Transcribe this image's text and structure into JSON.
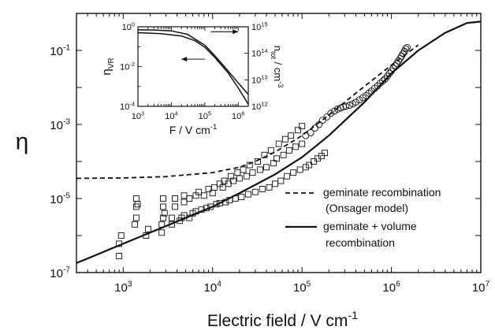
{
  "chart_data": [
    {
      "type": "scatter",
      "xlabel_base": "Electric field  /  V cm",
      "xlabel_exp": "-1",
      "ylabel": "η",
      "xscale": "log",
      "yscale": "log",
      "xlim": [
        300,
        10000000
      ],
      "ylim": [
        1e-07,
        1
      ],
      "xticks": [
        {
          "v": 1000,
          "base": "10",
          "exp": "3"
        },
        {
          "v": 10000,
          "base": "10",
          "exp": "4"
        },
        {
          "v": 100000,
          "base": "10",
          "exp": "5"
        },
        {
          "v": 1000000,
          "base": "10",
          "exp": "6"
        },
        {
          "v": 10000000,
          "base": "10",
          "exp": "7"
        }
      ],
      "yticks": [
        {
          "v": 1e-07,
          "base": "10",
          "exp": "-7"
        },
        {
          "v": 1e-05,
          "base": "10",
          "exp": "-5"
        },
        {
          "v": 0.001,
          "base": "10",
          "exp": "-3"
        },
        {
          "v": 0.1,
          "base": "10",
          "exp": "-1"
        }
      ],
      "legend": {
        "placement": "lower-right",
        "entries": [
          {
            "style": "dashed",
            "lines": [
              "geminate recombination",
              "(Onsager model)"
            ]
          },
          {
            "style": "solid",
            "lines": [
              "geminate + volume",
              "recombination"
            ]
          }
        ]
      },
      "series": [
        {
          "style": "dashed",
          "points": [
            [
              300,
              3.5e-05
            ],
            [
              1000,
              3.6e-05
            ],
            [
              3000,
              3.9e-05
            ],
            [
              10000,
              5e-05
            ],
            [
              20000,
              7e-05
            ],
            [
              30000,
              0.0001
            ],
            [
              50000,
              0.00018
            ],
            [
              100000,
              0.0005
            ],
            [
              200000,
              0.0018
            ],
            [
              400000,
              0.007
            ],
            [
              1000000,
              0.04
            ],
            [
              2000000,
              0.14
            ]
          ]
        },
        {
          "style": "solid",
          "points": [
            [
              300,
              1.8e-07
            ],
            [
              1000,
              6e-07
            ],
            [
              3000,
              1.8e-06
            ],
            [
              10000,
              6e-06
            ],
            [
              20000,
              1.4e-05
            ],
            [
              50000,
              4.5e-05
            ],
            [
              100000,
              0.00013
            ],
            [
              200000,
              0.0005
            ],
            [
              500000,
              0.004
            ],
            [
              1000000,
              0.024
            ],
            [
              2000000,
              0.1
            ],
            [
              4000000,
              0.3
            ],
            [
              7000000,
              0.55
            ],
            [
              10000000,
              0.6
            ]
          ]
        },
        {
          "marker": "square",
          "points": [
            [
              900,
              2.8e-07
            ],
            [
              900,
              6e-07
            ],
            [
              950,
              1e-06
            ],
            [
              1350,
              2e-06
            ],
            [
              1400,
              3e-06
            ],
            [
              1400,
              6e-06
            ],
            [
              1400,
              1e-05
            ],
            [
              1450,
              7e-06
            ],
            [
              1800,
              1e-06
            ],
            [
              1900,
              1.5e-06
            ],
            [
              2700,
              1.2e-06
            ],
            [
              2700,
              2e-06
            ],
            [
              2800,
              3e-06
            ],
            [
              2800,
              6e-06
            ],
            [
              2800,
              1e-05
            ],
            [
              2900,
              4e-06
            ],
            [
              3500,
              2e-06
            ],
            [
              3500,
              3e-06
            ],
            [
              3800,
              6e-06
            ],
            [
              3800,
              1e-05
            ],
            [
              4300,
              2.5e-06
            ],
            [
              4500,
              3e-06
            ],
            [
              4800,
              3.5e-06
            ],
            [
              4800,
              8e-06
            ],
            [
              4800,
              1.2e-05
            ],
            [
              5500,
              3e-06
            ],
            [
              5500,
              1e-05
            ],
            [
              6000,
              4e-06
            ],
            [
              6500,
              1.2e-05
            ],
            [
              6500,
              4.5e-06
            ],
            [
              7000,
              1.5e-05
            ],
            [
              7500,
              5e-06
            ],
            [
              8000,
              1.2e-05
            ],
            [
              8500,
              5.5e-06
            ],
            [
              9000,
              1.8e-05
            ],
            [
              9500,
              6e-06
            ],
            [
              10000,
              1.4e-05
            ],
            [
              10500,
              2e-05
            ],
            [
              11000,
              7e-06
            ],
            [
              12000,
              2.5e-05
            ],
            [
              12000,
              7.5e-06
            ],
            [
              13000,
              2e-05
            ],
            [
              13500,
              3e-05
            ],
            [
              14000,
              8e-06
            ],
            [
              15000,
              2.5e-05
            ],
            [
              15500,
              9e-06
            ],
            [
              16000,
              4e-05
            ],
            [
              17000,
              3e-05
            ],
            [
              18000,
              1e-05
            ],
            [
              19000,
              5e-05
            ],
            [
              20000,
              3.5e-05
            ],
            [
              21000,
              1.1e-05
            ],
            [
              22000,
              6e-05
            ],
            [
              24000,
              4e-05
            ],
            [
              25000,
              1.3e-05
            ],
            [
              26000,
              8e-05
            ],
            [
              28000,
              5e-05
            ],
            [
              30000,
              1.5e-05
            ],
            [
              32000,
              0.0001
            ],
            [
              34000,
              6e-05
            ],
            [
              36000,
              1.8e-05
            ],
            [
              38000,
              0.00015
            ],
            [
              40000,
              7e-05
            ],
            [
              43000,
              2e-05
            ],
            [
              45000,
              0.0002
            ],
            [
              48000,
              9e-05
            ],
            [
              50000,
              2.5e-05
            ],
            [
              52000,
              0.00012
            ],
            [
              55000,
              0.0003
            ],
            [
              58000,
              3e-05
            ],
            [
              62000,
              0.00015
            ],
            [
              65000,
              0.0004
            ],
            [
              68000,
              4e-05
            ],
            [
              72000,
              0.0002
            ],
            [
              75000,
              0.0005
            ],
            [
              80000,
              5e-05
            ],
            [
              85000,
              0.00025
            ],
            [
              90000,
              0.0007
            ],
            [
              95000,
              6e-05
            ],
            [
              100000,
              0.0003
            ],
            [
              100000,
              0.0009
            ],
            [
              110000,
              7e-05
            ],
            [
              120000,
              8e-05
            ],
            [
              135000,
              0.0001
            ],
            [
              150000,
              0.00012
            ],
            [
              165000,
              0.00014
            ],
            [
              180000,
              0.00017
            ]
          ]
        },
        {
          "marker": "circle",
          "points": [
            [
              110000,
              0.0005
            ],
            [
              125000,
              0.0006
            ],
            [
              140000,
              0.0008
            ],
            [
              155000,
              0.001
            ],
            [
              170000,
              0.0013
            ],
            [
              190000,
              0.0016
            ],
            [
              210000,
              0.002
            ],
            [
              230000,
              0.0023
            ],
            [
              250000,
              0.0026
            ],
            [
              270000,
              0.0028
            ],
            [
              290000,
              0.003
            ],
            [
              310000,
              0.0031
            ],
            [
              340000,
              0.0033
            ],
            [
              370000,
              0.0036
            ],
            [
              400000,
              0.004
            ],
            [
              440000,
              0.0046
            ],
            [
              480000,
              0.0053
            ],
            [
              520000,
              0.006
            ],
            [
              560000,
              0.007
            ],
            [
              600000,
              0.008
            ],
            [
              650000,
              0.0095
            ],
            [
              700000,
              0.011
            ],
            [
              750000,
              0.013
            ],
            [
              800000,
              0.015
            ],
            [
              850000,
              0.017
            ],
            [
              900000,
              0.02
            ],
            [
              950000,
              0.024
            ],
            [
              1000000,
              0.028
            ],
            [
              1050000,
              0.033
            ],
            [
              1100000,
              0.039
            ],
            [
              1150000,
              0.045
            ],
            [
              1200000,
              0.052
            ],
            [
              1250000,
              0.06
            ],
            [
              1300000,
              0.07
            ],
            [
              1350000,
              0.082
            ],
            [
              1400000,
              0.095
            ],
            [
              1450000,
              0.11
            ],
            [
              1500000,
              0.12
            ]
          ]
        }
      ]
    },
    {
      "type": "line",
      "xlabel_base": "F  /  V cm",
      "xlabel_exp": "-1",
      "ylabel_base": "η",
      "ylabel_sub": "VR",
      "y2label_base": "n",
      "y2label_sub": "tot",
      "y2label_rest": "  / cm",
      "y2label_exp": "-3",
      "xscale": "log",
      "yscale": "log",
      "y2scale": "log",
      "xlim": [
        1000,
        2000000
      ],
      "ylim": [
        0.0001,
        1
      ],
      "y2lim": [
        1000000000000.0,
        1000000000000000.0
      ],
      "xticks": [
        {
          "v": 1000,
          "base": "10",
          "exp": "3"
        },
        {
          "v": 10000,
          "base": "10",
          "exp": "4"
        },
        {
          "v": 100000,
          "base": "10",
          "exp": "5"
        },
        {
          "v": 1000000,
          "base": "10",
          "exp": "6"
        }
      ],
      "yticks": [
        {
          "v": 1,
          "base": "10",
          "exp": "0"
        },
        {
          "v": 0.01,
          "base": "10",
          "exp": "-2"
        },
        {
          "v": 0.0001,
          "base": "10",
          "exp": "-4"
        }
      ],
      "y2ticks": [
        {
          "v": 1000000000000000.0,
          "base": "10",
          "exp": "15"
        },
        {
          "v": 100000000000000.0,
          "base": "10",
          "exp": "14"
        },
        {
          "v": 10000000000000.0,
          "base": "10",
          "exp": "13"
        },
        {
          "v": 1000000000000.0,
          "base": "10",
          "exp": "12"
        }
      ],
      "series": [
        {
          "axis": "left",
          "points": [
            [
              1000,
              0.7
            ],
            [
              3000,
              0.69
            ],
            [
              10000,
              0.62
            ],
            [
              30000,
              0.42
            ],
            [
              100000,
              0.12
            ],
            [
              200000,
              0.035
            ],
            [
              500000,
              0.006
            ],
            [
              1000000,
              0.0015
            ],
            [
              2000000,
              0.0004
            ]
          ]
        },
        {
          "axis": "right",
          "points": [
            [
              1000,
              600000000000000.0
            ],
            [
              5000,
              550000000000000.0
            ],
            [
              20000,
              450000000000000.0
            ],
            [
              50000,
              300000000000000.0
            ],
            [
              100000,
              170000000000000.0
            ],
            [
              200000,
              70000000000000.0
            ],
            [
              500000,
              18000000000000.0
            ],
            [
              1000000,
              5000000000000.0
            ],
            [
              2000000,
              1200000000000.0
            ]
          ]
        }
      ],
      "arrows": [
        {
          "axis": "right",
          "from": [
            150000,
            650000000000000.0
          ],
          "to": [
            1000000,
            650000000000000.0
          ]
        },
        {
          "axis": "right",
          "from": [
            100000,
            60000000000000.0
          ],
          "to": [
            20000,
            60000000000000.0
          ]
        }
      ]
    }
  ]
}
